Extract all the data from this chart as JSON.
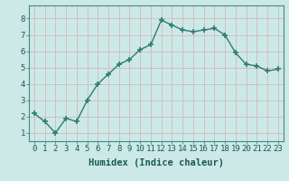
{
  "x": [
    0,
    1,
    2,
    3,
    4,
    5,
    6,
    7,
    8,
    9,
    10,
    11,
    12,
    13,
    14,
    15,
    16,
    17,
    18,
    19,
    20,
    21,
    22,
    23
  ],
  "y": [
    2.2,
    1.7,
    1.0,
    1.9,
    1.7,
    3.0,
    4.0,
    4.6,
    5.2,
    5.5,
    6.1,
    6.4,
    7.9,
    7.6,
    7.3,
    7.2,
    7.3,
    7.4,
    7.0,
    5.9,
    5.2,
    5.1,
    4.8,
    4.9
  ],
  "line_color": "#2d7d72",
  "marker": "+",
  "marker_size": 5,
  "bg_color": "#cce9e7",
  "grid_color": "#d4b8b8",
  "xlabel": "Humidex (Indice chaleur)",
  "xlabel_fontsize": 7.5,
  "tick_fontsize": 6.5,
  "ylim": [
    0.5,
    8.8
  ],
  "yticks": [
    1,
    2,
    3,
    4,
    5,
    6,
    7,
    8
  ],
  "xlim": [
    -0.5,
    23.5
  ],
  "xticks": [
    0,
    1,
    2,
    3,
    4,
    5,
    6,
    7,
    8,
    9,
    10,
    11,
    12,
    13,
    14,
    15,
    16,
    17,
    18,
    19,
    20,
    21,
    22,
    23
  ]
}
